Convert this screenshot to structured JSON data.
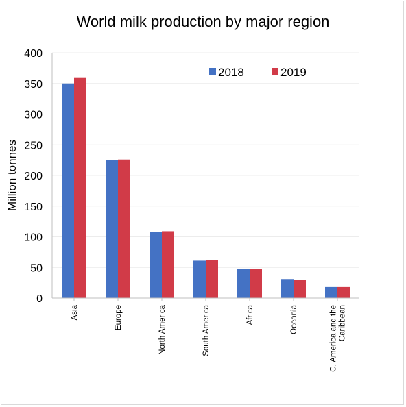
{
  "chart_data": {
    "type": "bar",
    "title": "World milk production by major region",
    "xlabel": "",
    "ylabel": "Million tonnes",
    "ylim": [
      0,
      400
    ],
    "yticks": [
      0,
      50,
      100,
      150,
      200,
      250,
      300,
      350,
      400
    ],
    "grid": true,
    "legend_position": "top-right",
    "categories": [
      "Asia",
      "Europe",
      "North America",
      "South America",
      "Africa",
      "Oceania",
      [
        "C. America and the",
        "Caribbean"
      ]
    ],
    "series": [
      {
        "name": "2018",
        "color": "#4472c4",
        "values": [
          350,
          225,
          108,
          61,
          47,
          31,
          18
        ]
      },
      {
        "name": "2019",
        "color": "#d13b48",
        "values": [
          359,
          226,
          109,
          62,
          47,
          30,
          18
        ]
      }
    ]
  }
}
